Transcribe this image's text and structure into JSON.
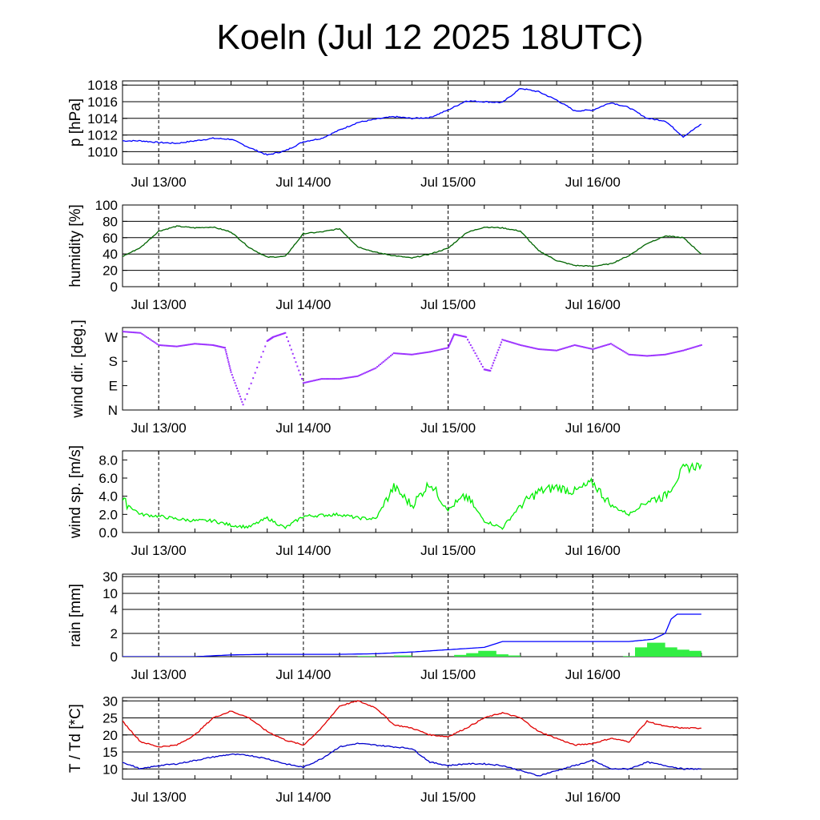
{
  "title": "Koeln (Jul 12 2025 18UTC)",
  "chart_data": [
    {
      "type": "line",
      "ylabel": "p [hPa]",
      "ytick_labels": [
        "1010",
        "1012",
        "1014",
        "1016",
        "1018"
      ],
      "ylim": [
        1008.5,
        1018.5
      ],
      "grid": true,
      "x_tick_labels": [
        "Jul 13/00",
        "Jul 14/00",
        "Jul 15/00",
        "Jul 16/00"
      ],
      "x": [
        0,
        3,
        6,
        9,
        12,
        15,
        18,
        21,
        24,
        27,
        30,
        33,
        36,
        39,
        42,
        45,
        48,
        51,
        54,
        57,
        60,
        63,
        66,
        69,
        72,
        75,
        78,
        81,
        84,
        87,
        90,
        93,
        96
      ],
      "series": [
        {
          "color": "#0000ff",
          "values": [
            1011.3,
            1011.3,
            1011.1,
            1011.0,
            1011.3,
            1011.6,
            1011.5,
            1010.5,
            1009.6,
            1010.1,
            1011.2,
            1011.6,
            1012.6,
            1013.5,
            1013.9,
            1014.2,
            1014.0,
            1014.1,
            1015.0,
            1016.1,
            1016.0,
            1015.9,
            1017.6,
            1017.2,
            1016.2,
            1014.9,
            1015.0,
            1015.9,
            1015.3,
            1014.0,
            1013.7,
            1011.8,
            1013.3
          ]
        }
      ]
    },
    {
      "type": "line",
      "ylabel": "humidity [%]",
      "ytick_labels": [
        "0",
        "20",
        "40",
        "60",
        "80",
        "100"
      ],
      "ylim": [
        0,
        100
      ],
      "grid": true,
      "x_tick_labels": [
        "Jul 13/00",
        "Jul 14/00",
        "Jul 15/00",
        "Jul 16/00"
      ],
      "x": [
        0,
        3,
        6,
        9,
        12,
        15,
        18,
        21,
        24,
        27,
        30,
        33,
        36,
        39,
        42,
        45,
        48,
        51,
        54,
        57,
        60,
        63,
        66,
        69,
        72,
        75,
        78,
        81,
        84,
        87,
        90,
        93,
        96
      ],
      "series": [
        {
          "color": "#006400",
          "values": [
            37,
            48,
            68,
            74,
            72,
            73,
            67,
            48,
            36,
            37,
            65,
            67,
            71,
            49,
            42,
            38,
            35,
            40,
            47,
            66,
            73,
            72,
            68,
            44,
            32,
            26,
            25,
            28,
            38,
            53,
            62,
            60,
            40
          ]
        }
      ]
    },
    {
      "type": "scatter",
      "ylabel": "wind dir. [deg.]",
      "ytick_labels": [
        "N",
        "E",
        "S",
        "W"
      ],
      "ylim": [
        0,
        300
      ],
      "grid": false,
      "x_tick_labels": [
        "Jul 13/00",
        "Jul 14/00",
        "Jul 15/00",
        "Jul 16/00"
      ],
      "x": [
        0,
        3,
        6,
        9,
        12,
        15,
        17,
        18,
        20,
        24,
        25,
        27,
        30,
        33,
        36,
        39,
        42,
        45,
        48,
        51,
        54,
        55,
        57,
        60,
        61,
        63,
        66,
        69,
        72,
        75,
        78,
        81,
        84,
        87,
        90,
        93,
        96
      ],
      "series": [
        {
          "color": "#9b30ff",
          "values": [
            290,
            285,
            240,
            235,
            245,
            240,
            230,
            140,
            20,
            255,
            270,
            285,
            100,
            115,
            115,
            125,
            155,
            210,
            205,
            215,
            230,
            280,
            270,
            150,
            145,
            260,
            240,
            225,
            220,
            240,
            225,
            245,
            205,
            200,
            205,
            220,
            240
          ]
        }
      ]
    },
    {
      "type": "line",
      "ylabel": "wind sp. [m/s]",
      "ytick_labels": [
        "0.0",
        "2.0",
        "4.0",
        "6.0",
        "8.0"
      ],
      "ylim": [
        0,
        9
      ],
      "grid": false,
      "x_tick_labels": [
        "Jul 13/00",
        "Jul 14/00",
        "Jul 15/00",
        "Jul 16/00"
      ],
      "x": [
        0,
        3,
        6,
        9,
        12,
        15,
        18,
        21,
        24,
        27,
        30,
        33,
        36,
        39,
        42,
        45,
        48,
        51,
        54,
        57,
        60,
        63,
        66,
        69,
        72,
        75,
        78,
        81,
        84,
        87,
        90,
        93,
        96
      ],
      "series": [
        {
          "color": "#00ee00",
          "values": [
            3.5,
            2.0,
            1.8,
            1.5,
            1.3,
            1.3,
            0.8,
            0.6,
            1.6,
            0.5,
            1.8,
            1.9,
            2.0,
            1.6,
            1.5,
            5.0,
            3.0,
            5.5,
            2.5,
            4.0,
            1.3,
            0.5,
            3.0,
            4.5,
            5.0,
            4.5,
            5.5,
            3.0,
            2.0,
            3.5,
            4.0,
            7.0,
            7.5
          ]
        }
      ]
    },
    {
      "type": "bar",
      "ylabel": "rain [mm]",
      "ytick_labels": [
        "0",
        "2",
        "4",
        "10",
        "30"
      ],
      "grid": true,
      "x_tick_labels": [
        "Jul 13/00",
        "Jul 14/00",
        "Jul 15/00",
        "Jul 16/00"
      ],
      "bars": {
        "color": "#33ee44",
        "x": [
          42,
          48,
          58,
          60,
          62,
          64,
          66,
          86,
          88,
          90,
          92,
          94,
          96
        ],
        "values": [
          0.05,
          0.1,
          0.15,
          0.3,
          0.5,
          0.2,
          0.1,
          0.05,
          0.8,
          1.2,
          0.8,
          0.6,
          0.5
        ]
      },
      "series": [
        {
          "color": "#0000ff",
          "x": [
            0,
            12,
            18,
            24,
            36,
            42,
            48,
            54,
            60,
            63,
            66,
            72,
            78,
            84,
            88,
            90,
            91,
            92,
            96
          ],
          "values": [
            0,
            0,
            0.15,
            0.2,
            0.2,
            0.25,
            0.4,
            0.6,
            0.8,
            1.3,
            1.3,
            1.3,
            1.3,
            1.3,
            1.5,
            2.0,
            3.2,
            3.6,
            3.6
          ]
        }
      ]
    },
    {
      "type": "line",
      "ylabel": "T / Td [*C]",
      "ytick_labels": [
        "10",
        "15",
        "20",
        "25",
        "30"
      ],
      "ylim": [
        7,
        31
      ],
      "grid": true,
      "x_tick_labels": [
        "Jul 13/00",
        "Jul 14/00",
        "Jul 15/00",
        "Jul 16/00"
      ],
      "x": [
        0,
        3,
        6,
        9,
        12,
        15,
        18,
        21,
        24,
        27,
        30,
        33,
        36,
        39,
        42,
        45,
        48,
        51,
        54,
        57,
        60,
        63,
        66,
        69,
        72,
        75,
        78,
        81,
        84,
        87,
        90,
        93,
        96
      ],
      "series": [
        {
          "color": "#e00000",
          "values": [
            24,
            18,
            16.5,
            17,
            20,
            25,
            27,
            25,
            21,
            18.5,
            17,
            22,
            28.5,
            30,
            28,
            23,
            22,
            20,
            19.5,
            22,
            25,
            26.5,
            25,
            21,
            19,
            17,
            17.5,
            19,
            18,
            24,
            22.5,
            22,
            22
          ]
        },
        {
          "color": "#0000cc",
          "values": [
            12,
            10,
            11,
            11.5,
            12.5,
            13.5,
            14.3,
            14,
            13,
            11.5,
            10.5,
            13,
            16.5,
            17.5,
            17,
            16.5,
            16,
            12,
            11,
            11.5,
            11.5,
            11,
            9.5,
            8,
            9.5,
            11,
            12.5,
            10,
            10,
            12,
            11,
            10,
            10
          ]
        }
      ]
    }
  ]
}
